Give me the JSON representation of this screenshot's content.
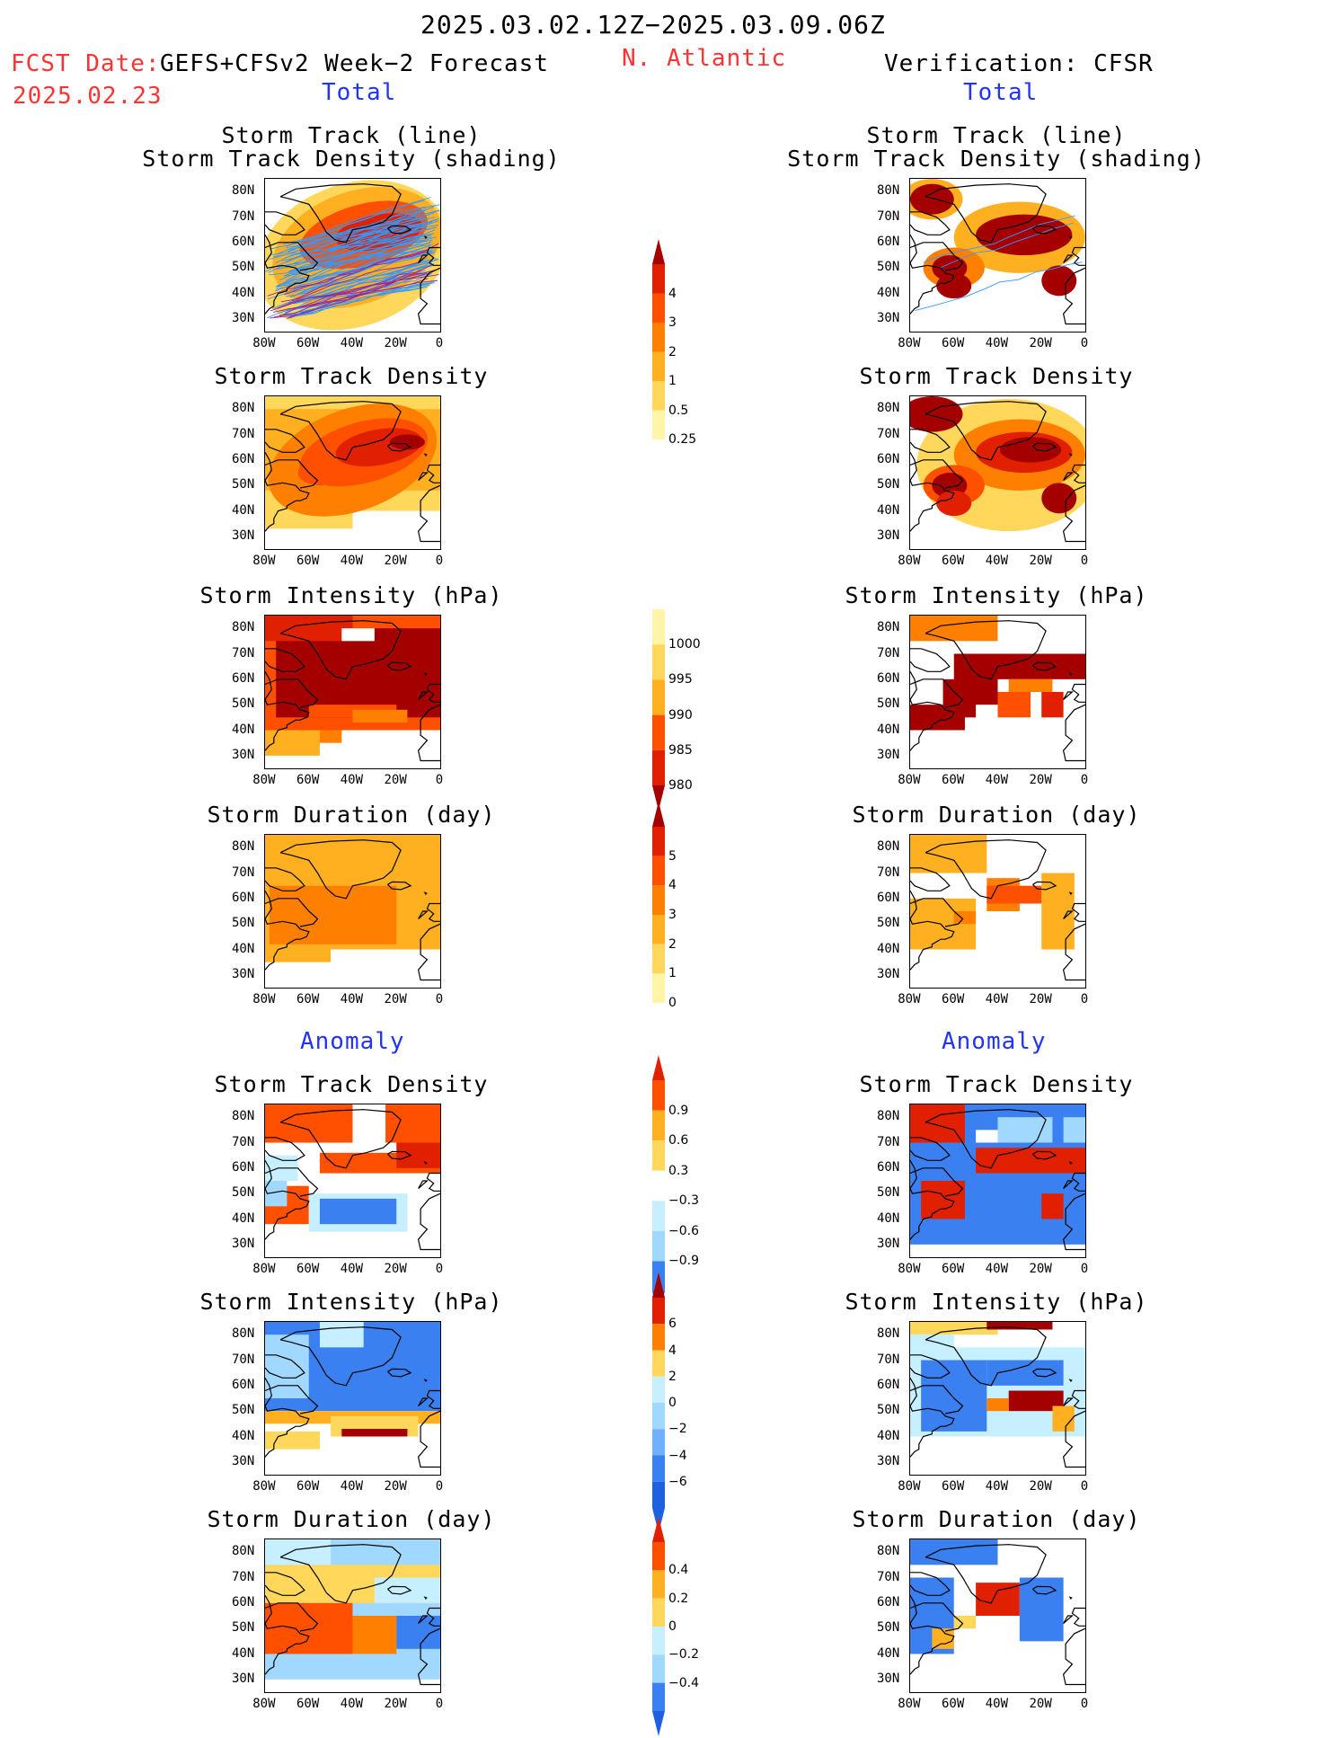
{
  "header": {
    "date_range": "2025.03.02.12Z−2025.03.09.06Z",
    "fcst_label": "FCST Date:",
    "fcst_model": "GEFS+CFSv2 Week−2 Forecast",
    "fcst_date": "2025.02.23",
    "region": "N. Atlantic",
    "verification": "Verification: CFSR",
    "left_total": "Total",
    "right_total": "Total",
    "left_anomaly": "Anomaly",
    "right_anomaly": "Anomaly"
  },
  "panel_titles": {
    "track_line": "Storm Track (line)",
    "track_shading": "Storm Track Density (shading)",
    "track_density": "Storm Track Density",
    "intensity": "Storm Intensity (hPa)",
    "duration": "Storm Duration (day)"
  },
  "axes": {
    "lat_ticks": [
      "80N",
      "70N",
      "60N",
      "50N",
      "40N",
      "30N"
    ],
    "lon_ticks": [
      "80W",
      "60W",
      "40W",
      "20W",
      "0"
    ]
  },
  "colorbars": {
    "density_total": [
      "4",
      "3",
      "2",
      "1",
      "0.5",
      "0.25"
    ],
    "intensity_total": [
      "1000",
      "995",
      "990",
      "985",
      "980"
    ],
    "duration_total": [
      "5",
      "4",
      "3",
      "2",
      "1",
      "0"
    ],
    "density_anom": [
      "0.9",
      "0.6",
      "0.3",
      "−0.3",
      "−0.6",
      "−0.9"
    ],
    "intensity_anom": [
      "6",
      "4",
      "2",
      "0",
      "−2",
      "−4",
      "−6"
    ],
    "duration_anom": [
      "0.4",
      "0.2",
      "0",
      "−0.2",
      "−0.4"
    ]
  },
  "colors": {
    "warm": [
      "#fff5a8",
      "#ffd75a",
      "#ffb020",
      "#ff8000",
      "#ff5000",
      "#e02000",
      "#a50000"
    ],
    "cool": [
      "#c6f0ff",
      "#a0d8ff",
      "#70b0ff",
      "#3a80f0",
      "#1f60e0"
    ],
    "title_red": "#ff3333",
    "title_blue": "#2233ff",
    "track_line": "#3399ff"
  }
}
